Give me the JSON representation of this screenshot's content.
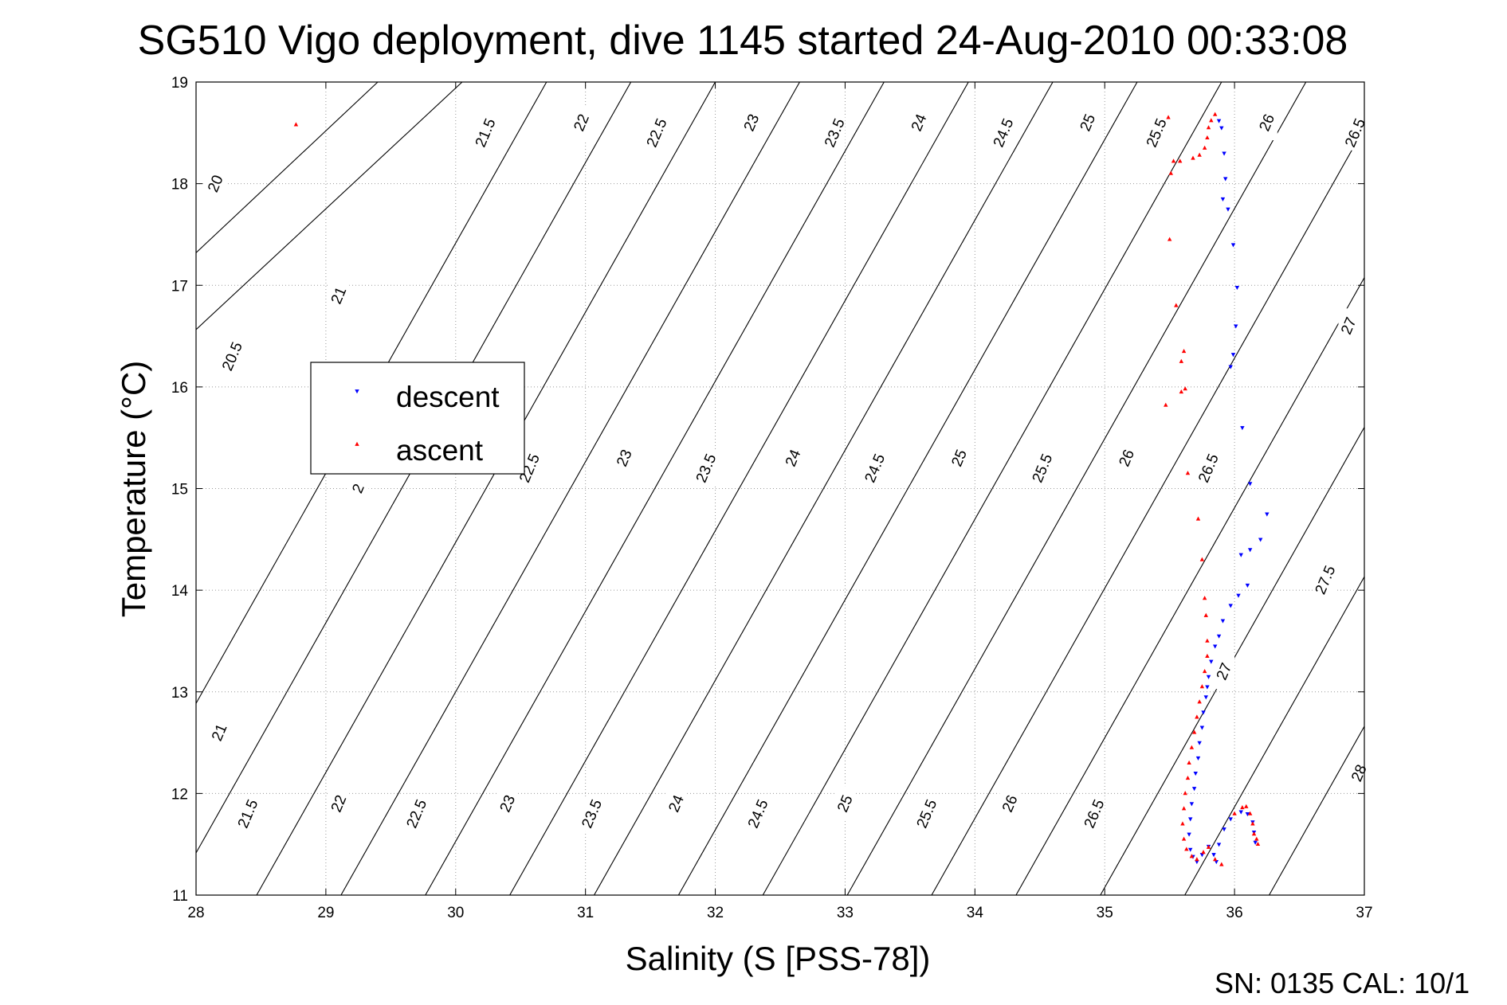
{
  "chart_data": {
    "type": "scatter",
    "title": "SG510 Vigo deployment, dive 1145 started 24-Aug-2010 00:33:08",
    "xlabel": "Salinity (S [PSS-78])",
    "ylabel": "Temperature (°C)",
    "xlim": [
      28,
      37
    ],
    "ylim": [
      11,
      19
    ],
    "xticks": [
      28,
      29,
      30,
      31,
      32,
      33,
      34,
      35,
      36,
      37
    ],
    "yticks": [
      11,
      12,
      13,
      14,
      15,
      16,
      17,
      18,
      19
    ],
    "grid": true,
    "legend_position": "middle-left",
    "footer": "SN: 0135  CAL: 10/1",
    "series": [
      {
        "name": "descent",
        "marker": "triangle-down",
        "color": "#0000ff",
        "points": [
          [
            35.88,
            18.62
          ],
          [
            35.9,
            18.55
          ],
          [
            35.92,
            18.3
          ],
          [
            35.93,
            18.05
          ],
          [
            35.91,
            17.85
          ],
          [
            35.95,
            17.75
          ],
          [
            35.99,
            17.4
          ],
          [
            36.02,
            16.98
          ],
          [
            36.01,
            16.6
          ],
          [
            35.99,
            16.32
          ],
          [
            35.97,
            16.2
          ],
          [
            36.06,
            15.6
          ],
          [
            36.12,
            15.05
          ],
          [
            36.25,
            14.75
          ],
          [
            36.2,
            14.5
          ],
          [
            36.12,
            14.4
          ],
          [
            36.05,
            14.35
          ],
          [
            36.1,
            14.05
          ],
          [
            36.03,
            13.95
          ],
          [
            35.97,
            13.85
          ],
          [
            35.91,
            13.7
          ],
          [
            35.88,
            13.55
          ],
          [
            35.85,
            13.45
          ],
          [
            35.82,
            13.3
          ],
          [
            35.8,
            13.15
          ],
          [
            35.79,
            13.05
          ],
          [
            35.78,
            12.95
          ],
          [
            35.76,
            12.8
          ],
          [
            35.75,
            12.65
          ],
          [
            35.73,
            12.5
          ],
          [
            35.72,
            12.35
          ],
          [
            35.7,
            12.2
          ],
          [
            35.69,
            12.05
          ],
          [
            35.67,
            11.9
          ],
          [
            35.66,
            11.75
          ],
          [
            35.65,
            11.6
          ],
          [
            35.66,
            11.45
          ],
          [
            35.68,
            11.38
          ],
          [
            35.71,
            11.33
          ],
          [
            35.75,
            11.4
          ],
          [
            35.8,
            11.48
          ],
          [
            35.84,
            11.4
          ],
          [
            35.86,
            11.33
          ],
          [
            35.88,
            11.5
          ],
          [
            35.92,
            11.65
          ],
          [
            35.97,
            11.75
          ],
          [
            36.05,
            11.82
          ],
          [
            36.1,
            11.8
          ],
          [
            36.14,
            11.72
          ],
          [
            36.15,
            11.62
          ],
          [
            36.16,
            11.52
          ]
        ]
      },
      {
        "name": "ascent",
        "marker": "triangle-up",
        "color": "#ff0000",
        "points": [
          [
            28.77,
            18.58
          ],
          [
            35.85,
            18.68
          ],
          [
            35.82,
            18.62
          ],
          [
            35.8,
            18.55
          ],
          [
            35.79,
            18.45
          ],
          [
            35.77,
            18.35
          ],
          [
            35.73,
            18.28
          ],
          [
            35.68,
            18.25
          ],
          [
            35.58,
            18.22
          ],
          [
            35.53,
            18.22
          ],
          [
            35.51,
            18.1
          ],
          [
            35.49,
            18.65
          ],
          [
            35.5,
            17.45
          ],
          [
            35.55,
            16.8
          ],
          [
            35.61,
            16.35
          ],
          [
            35.59,
            16.25
          ],
          [
            35.62,
            15.98
          ],
          [
            35.59,
            15.95
          ],
          [
            35.47,
            15.82
          ],
          [
            35.64,
            15.15
          ],
          [
            35.72,
            14.7
          ],
          [
            35.75,
            14.3
          ],
          [
            35.77,
            13.92
          ],
          [
            35.78,
            13.75
          ],
          [
            35.79,
            13.5
          ],
          [
            35.79,
            13.35
          ],
          [
            35.77,
            13.2
          ],
          [
            35.75,
            13.05
          ],
          [
            35.73,
            12.9
          ],
          [
            35.71,
            12.75
          ],
          [
            35.69,
            12.6
          ],
          [
            35.67,
            12.45
          ],
          [
            35.65,
            12.3
          ],
          [
            35.64,
            12.15
          ],
          [
            35.62,
            12.0
          ],
          [
            35.61,
            11.85
          ],
          [
            35.6,
            11.7
          ],
          [
            35.61,
            11.55
          ],
          [
            35.63,
            11.45
          ],
          [
            35.67,
            11.38
          ],
          [
            35.71,
            11.35
          ],
          [
            35.76,
            11.42
          ],
          [
            35.8,
            11.47
          ],
          [
            35.85,
            11.35
          ],
          [
            35.9,
            11.3
          ],
          [
            36.0,
            11.8
          ],
          [
            36.06,
            11.86
          ],
          [
            36.09,
            11.87
          ],
          [
            36.12,
            11.8
          ],
          [
            36.14,
            11.7
          ],
          [
            36.15,
            11.6
          ],
          [
            36.17,
            11.55
          ],
          [
            36.18,
            11.5
          ]
        ]
      }
    ],
    "isopycnals": [
      {
        "label": "20",
        "s13": 24.4,
        "s19": 29.4
      },
      {
        "label": "20.5",
        "s13": 25.0,
        "s19": 30.05
      },
      {
        "label": "21",
        "s13": 28.05,
        "s19": 30.7
      },
      {
        "label": "21.5",
        "s13": 28.7,
        "s19": 31.35
      },
      {
        "label": "22",
        "s13": 29.35,
        "s19": 32.0
      },
      {
        "label": "22.5",
        "s13": 30.0,
        "s19": 32.65
      },
      {
        "label": "23",
        "s13": 30.65,
        "s19": 33.3
      },
      {
        "label": "23.5",
        "s13": 31.3,
        "s19": 33.95
      },
      {
        "label": "24",
        "s13": 31.95,
        "s19": 34.6
      },
      {
        "label": "24.5",
        "s13": 32.6,
        "s19": 35.25
      },
      {
        "label": "25",
        "s13": 33.25,
        "s19": 35.9
      },
      {
        "label": "25.5",
        "s13": 33.9,
        "s19": 36.55
      },
      {
        "label": "26",
        "s13": 34.55,
        "s19": 37.2
      },
      {
        "label": "26.5",
        "s13": 35.2,
        "s19": 37.85
      },
      {
        "label": "27",
        "s13": 35.85,
        "s19": 38.5
      },
      {
        "label": "27.5",
        "s13": 36.5,
        "s19": 39.15
      },
      {
        "label": "28",
        "s13": 37.15,
        "s19": 39.8
      }
    ],
    "contour_labels": [
      {
        "text": "20",
        "s": 28.15,
        "t": 18.0
      },
      {
        "text": "20.5",
        "s": 28.28,
        "t": 16.3
      },
      {
        "text": "21",
        "s": 29.1,
        "t": 16.9
      },
      {
        "text": "21",
        "s": 28.18,
        "t": 12.6
      },
      {
        "text": "21.5",
        "s": 30.23,
        "t": 18.5
      },
      {
        "text": "22",
        "s": 30.97,
        "t": 18.6
      },
      {
        "text": "22.5",
        "s": 31.55,
        "t": 18.5
      },
      {
        "text": "23",
        "s": 32.28,
        "t": 18.6
      },
      {
        "text": "23.5",
        "s": 32.92,
        "t": 18.5
      },
      {
        "text": "24",
        "s": 33.57,
        "t": 18.6
      },
      {
        "text": "24.5",
        "s": 34.22,
        "t": 18.5
      },
      {
        "text": "25",
        "s": 34.87,
        "t": 18.6
      },
      {
        "text": "25.5",
        "s": 35.4,
        "t": 18.5
      },
      {
        "text": "26",
        "s": 36.25,
        "t": 18.6
      },
      {
        "text": "26.5",
        "s": 36.93,
        "t": 18.5
      },
      {
        "text": "2",
        "s": 29.25,
        "t": 15.0
      },
      {
        "text": "22.5",
        "s": 30.57,
        "t": 15.2
      },
      {
        "text": "23",
        "s": 31.3,
        "t": 15.3
      },
      {
        "text": "23.5",
        "s": 31.93,
        "t": 15.2
      },
      {
        "text": "24",
        "s": 32.6,
        "t": 15.3
      },
      {
        "text": "24.5",
        "s": 33.23,
        "t": 15.2
      },
      {
        "text": "25",
        "s": 33.88,
        "t": 15.3
      },
      {
        "text": "25.5",
        "s": 34.52,
        "t": 15.2
      },
      {
        "text": "26",
        "s": 35.17,
        "t": 15.3
      },
      {
        "text": "26.5",
        "s": 35.8,
        "t": 15.2
      },
      {
        "text": "27",
        "s": 36.88,
        "t": 16.6
      },
      {
        "text": "27",
        "s": 35.92,
        "t": 13.2
      },
      {
        "text": "27.5",
        "s": 36.7,
        "t": 14.1
      },
      {
        "text": "28",
        "s": 36.96,
        "t": 12.2
      },
      {
        "text": "21.5",
        "s": 28.4,
        "t": 11.8
      },
      {
        "text": "22",
        "s": 29.1,
        "t": 11.9
      },
      {
        "text": "22.5",
        "s": 29.7,
        "t": 11.8
      },
      {
        "text": "23",
        "s": 30.4,
        "t": 11.9
      },
      {
        "text": "23.5",
        "s": 31.05,
        "t": 11.8
      },
      {
        "text": "24",
        "s": 31.7,
        "t": 11.9
      },
      {
        "text": "24.5",
        "s": 32.33,
        "t": 11.8
      },
      {
        "text": "25",
        "s": 33.0,
        "t": 11.9
      },
      {
        "text": "25.5",
        "s": 33.63,
        "t": 11.8
      },
      {
        "text": "26",
        "s": 34.27,
        "t": 11.9
      },
      {
        "text": "26.5",
        "s": 34.92,
        "t": 11.8
      }
    ]
  }
}
